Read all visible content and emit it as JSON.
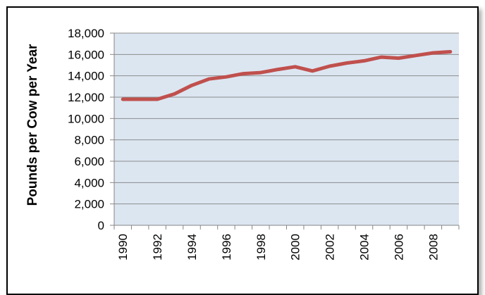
{
  "chart_data": {
    "type": "line",
    "title": "",
    "xlabel": "",
    "ylabel": "Pounds per Cow per Year",
    "x": [
      1990,
      1991,
      1992,
      1993,
      1994,
      1995,
      1996,
      1997,
      1998,
      1999,
      2000,
      2001,
      2002,
      2003,
      2004,
      2005,
      2006,
      2007,
      2008,
      2009
    ],
    "x_tick_labels": [
      "1990",
      "1992",
      "1994",
      "1996",
      "1998",
      "2000",
      "2002",
      "2004",
      "2006",
      "2008"
    ],
    "y_tick_labels": [
      "0",
      "2,000",
      "4,000",
      "6,000",
      "8,000",
      "10,000",
      "12,000",
      "14,000",
      "16,000",
      "18,000"
    ],
    "ylim": [
      0,
      18000
    ],
    "y_ticks": [
      0,
      2000,
      4000,
      6000,
      8000,
      10000,
      12000,
      14000,
      16000,
      18000
    ],
    "grid": true,
    "series": [
      {
        "values": [
          11800,
          11800,
          11800,
          12300,
          13100,
          13700,
          13900,
          14200,
          14300,
          14600,
          14850,
          14450,
          14900,
          15200,
          15400,
          15750,
          15650,
          15900,
          16150,
          16250
        ]
      }
    ],
    "colors": {
      "line": "#c0504d",
      "plot_background": "#dce6f1",
      "gridline": "#8c8c8c",
      "axis": "#868686"
    }
  }
}
